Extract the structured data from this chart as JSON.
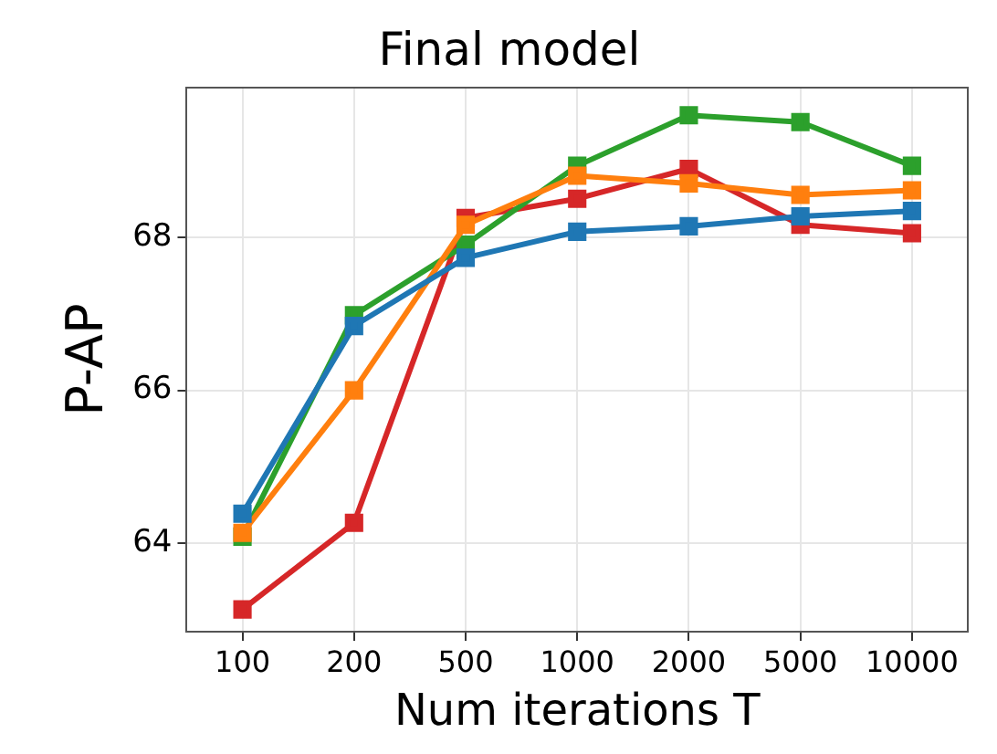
{
  "chart_data": {
    "type": "line",
    "title": "Final model",
    "xlabel": "Num iterations T",
    "ylabel": "P-AP",
    "categories": [
      "100",
      "200",
      "500",
      "1000",
      "2000",
      "5000",
      "10000"
    ],
    "series": [
      {
        "color": "#1f77b4",
        "values": [
          64.39,
          66.84,
          67.73,
          68.07,
          68.14,
          68.27,
          68.34
        ]
      },
      {
        "color": "#ff7f0e",
        "values": [
          64.14,
          66.0,
          68.16,
          68.8,
          68.7,
          68.55,
          68.61
        ]
      },
      {
        "color": "#2ca02c",
        "values": [
          64.09,
          66.98,
          67.9,
          68.93,
          69.59,
          69.5,
          68.93
        ]
      },
      {
        "color": "#d62728",
        "values": [
          63.14,
          64.27,
          68.25,
          68.5,
          68.89,
          68.16,
          68.05
        ]
      }
    ],
    "ylim": [
      62.85,
      69.95
    ],
    "yticks": [
      64,
      66,
      68
    ],
    "grid": true,
    "legend": false,
    "marker": "square",
    "line_style": "solid"
  }
}
